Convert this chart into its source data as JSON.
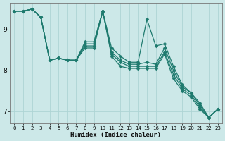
{
  "xlabel": "Humidex (Indice chaleur)",
  "bg_color": "#cce8e8",
  "line_color": "#1e7a6e",
  "grid_color_major": "#aed4d4",
  "grid_color_minor": "#c0e0e0",
  "xlim": [
    -0.5,
    23.5
  ],
  "ylim": [
    6.7,
    9.65
  ],
  "yticks": [
    7,
    8,
    9
  ],
  "xticks": [
    0,
    1,
    2,
    3,
    4,
    5,
    6,
    7,
    8,
    9,
    10,
    11,
    12,
    13,
    14,
    15,
    16,
    17,
    18,
    19,
    20,
    21,
    22,
    23
  ],
  "series": [
    [
      9.45,
      9.45,
      9.5,
      9.3,
      8.25,
      8.3,
      8.25,
      8.25,
      8.7,
      8.7,
      9.45,
      8.55,
      8.35,
      8.2,
      8.2,
      9.25,
      8.6,
      8.65,
      8.1,
      7.65,
      7.45,
      7.2,
      6.85,
      7.05
    ],
    [
      9.45,
      9.45,
      9.5,
      9.3,
      8.25,
      8.3,
      8.25,
      8.25,
      8.65,
      8.65,
      9.45,
      8.45,
      8.25,
      8.15,
      8.15,
      8.2,
      8.15,
      8.55,
      8.0,
      7.6,
      7.45,
      7.15,
      6.85,
      7.05
    ],
    [
      9.45,
      9.45,
      9.5,
      9.3,
      8.25,
      8.3,
      8.25,
      8.25,
      8.6,
      8.6,
      9.45,
      8.4,
      8.2,
      8.1,
      8.1,
      8.1,
      8.1,
      8.45,
      7.9,
      7.55,
      7.4,
      7.1,
      6.85,
      7.05
    ],
    [
      9.45,
      9.45,
      9.5,
      9.3,
      8.25,
      8.3,
      8.25,
      8.25,
      8.55,
      8.55,
      9.45,
      8.35,
      8.1,
      8.05,
      8.05,
      8.05,
      8.05,
      8.4,
      7.8,
      7.5,
      7.35,
      7.05,
      6.85,
      7.05
    ]
  ],
  "marker": "D",
  "markersize": 2.5,
  "linewidth": 0.9
}
